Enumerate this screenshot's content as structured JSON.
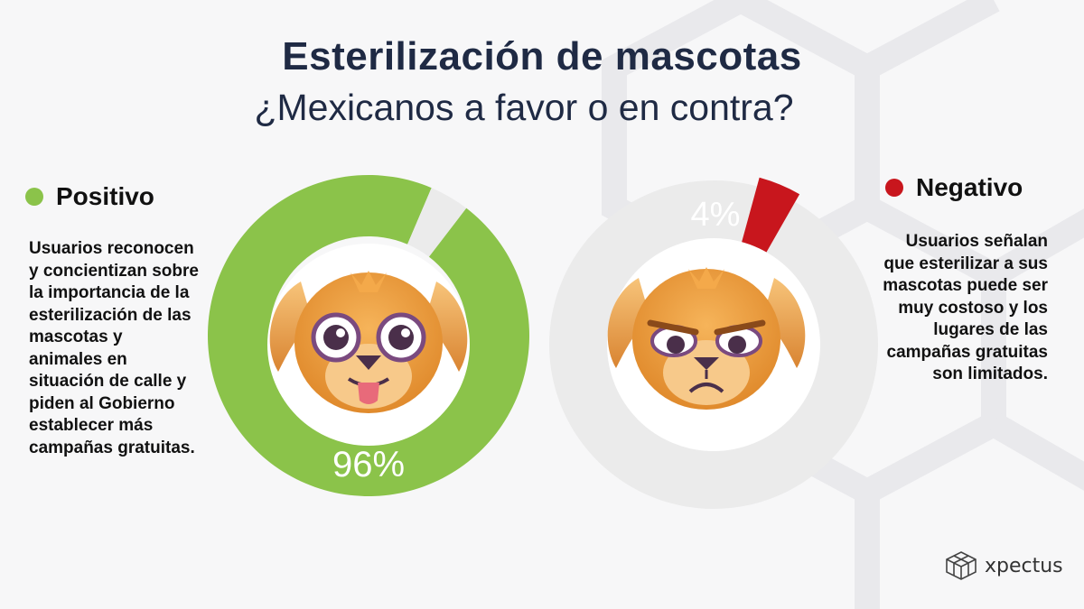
{
  "title": "Esterilización de mascotas",
  "subtitle": "¿Mexicanos a favor o en contra?",
  "positive": {
    "label": "Positivo",
    "color": "#8bc34a",
    "description": "Usuarios reconocen y concientizan sobre la importancia de la esterilización de las mascotas y animales en situación de calle y piden al Gobierno establecer más campañas gratuitas."
  },
  "negative": {
    "label": "Negativo",
    "color": "#c8161d",
    "description": "Usuarios señalan que esterilizar a sus mascotas puede ser muy costoso y los lugares de las campañas gratuitas son limitados."
  },
  "logo": {
    "text": "xpectus",
    "icon": "cube-logo-icon"
  },
  "chart_data": [
    {
      "type": "pie",
      "categories": [
        "Positivo",
        "Negativo"
      ],
      "values": [
        96,
        4
      ],
      "data_label": "96%",
      "highlight": "Positivo",
      "colors": [
        "#8bc34a",
        "#ebebeb"
      ],
      "center_icon": "happy-dog-face-icon"
    },
    {
      "type": "pie",
      "categories": [
        "Positivo",
        "Negativo"
      ],
      "values": [
        96,
        4
      ],
      "data_label": "4%",
      "highlight": "Negativo",
      "colors": [
        "#ebebeb",
        "#c8161d"
      ],
      "center_icon": "angry-dog-face-icon"
    }
  ]
}
